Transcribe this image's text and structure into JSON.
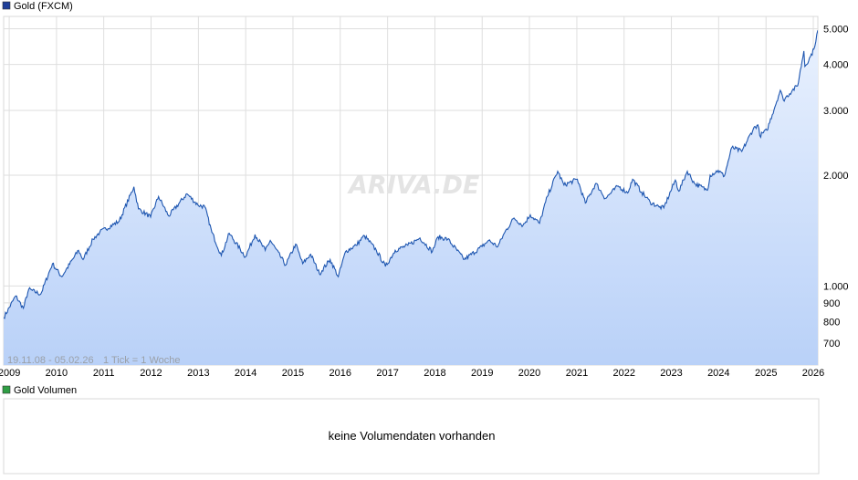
{
  "chart_data": [
    {
      "type": "area",
      "legend": "Gold (FXCM)",
      "legend_color": "#1f3f99",
      "line_color": "#1e56b0",
      "fill_top": "#e9f1fe",
      "fill_bottom": "#b9d1f8",
      "y_scale": "log",
      "ylim": [
        610,
        5400
      ],
      "y_ticks": [
        {
          "value": 700,
          "label": "700"
        },
        {
          "value": 800,
          "label": "800"
        },
        {
          "value": 900,
          "label": "900"
        },
        {
          "value": 1000,
          "label": "1.000"
        },
        {
          "value": 2000,
          "label": "2.000"
        },
        {
          "value": 3000,
          "label": "3.000"
        },
        {
          "value": 4000,
          "label": "4.000"
        },
        {
          "value": 5000,
          "label": "5.000"
        }
      ],
      "xlim": [
        "2008-11-19",
        "2026-02-05"
      ],
      "x_ticks": [
        "2009",
        "2010",
        "2011",
        "2012",
        "2013",
        "2014",
        "2015",
        "2016",
        "2017",
        "2018",
        "2019",
        "2020",
        "2021",
        "2022",
        "2023",
        "2024",
        "2025",
        "2026"
      ],
      "range_label": "19.11.08 - 05.02.26",
      "tick_label": "1 Tick = 1 Woche",
      "watermark": "ARIVA.DE",
      "grid": true,
      "x": [
        "2008-11-19",
        "2009-02-20",
        "2009-04-20",
        "2009-06-01",
        "2009-09-01",
        "2009-12-01",
        "2010-02-10",
        "2010-06-20",
        "2010-07-25",
        "2010-10-10",
        "2010-12-01",
        "2011-04-30",
        "2011-08-22",
        "2011-09-26",
        "2011-12-29",
        "2012-02-28",
        "2012-05-16",
        "2012-10-04",
        "2012-12-28",
        "2013-02-20",
        "2013-04-15",
        "2013-06-27",
        "2013-08-27",
        "2013-12-31",
        "2014-03-14",
        "2014-06-01",
        "2014-07-10",
        "2014-11-06",
        "2015-01-22",
        "2015-03-17",
        "2015-05-18",
        "2015-07-24",
        "2015-10-15",
        "2015-12-17",
        "2016-02-11",
        "2016-05-02",
        "2016-07-06",
        "2016-10-06",
        "2016-12-15",
        "2017-03-01",
        "2017-06-06",
        "2017-09-08",
        "2017-12-12",
        "2018-01-25",
        "2018-04-11",
        "2018-08-16",
        "2018-12-31",
        "2019-02-20",
        "2019-05-02",
        "2019-06-25",
        "2019-09-04",
        "2019-11-12",
        "2020-01-08",
        "2020-03-19",
        "2020-05-18",
        "2020-08-06",
        "2020-09-24",
        "2021-01-05",
        "2021-03-08",
        "2021-05-28",
        "2021-08-09",
        "2021-11-16",
        "2022-01-28",
        "2022-03-08",
        "2022-05-16",
        "2022-07-21",
        "2022-09-28",
        "2022-11-03",
        "2023-02-01",
        "2023-02-28",
        "2023-05-04",
        "2023-06-29",
        "2023-10-06",
        "2023-10-27",
        "2023-12-28",
        "2024-02-14",
        "2024-04-12",
        "2024-06-28",
        "2024-09-26",
        "2024-10-30",
        "2024-11-14",
        "2025-01-08",
        "2025-04-21",
        "2025-05-15",
        "2025-07-23",
        "2025-09-02",
        "2025-10-20",
        "2025-10-28",
        "2025-12-10",
        "2026-01-05",
        "2026-02-05"
      ],
      "values": [
        820,
        940,
        870,
        980,
        950,
        1150,
        1060,
        1250,
        1180,
        1340,
        1400,
        1500,
        1860,
        1620,
        1540,
        1750,
        1550,
        1780,
        1660,
        1640,
        1400,
        1210,
        1390,
        1200,
        1380,
        1250,
        1330,
        1140,
        1300,
        1150,
        1220,
        1080,
        1180,
        1060,
        1240,
        1290,
        1370,
        1250,
        1130,
        1250,
        1290,
        1350,
        1240,
        1360,
        1340,
        1180,
        1280,
        1330,
        1280,
        1400,
        1530,
        1460,
        1560,
        1480,
        1750,
        2050,
        1880,
        1950,
        1680,
        1900,
        1730,
        1870,
        1790,
        1950,
        1800,
        1690,
        1640,
        1630,
        1940,
        1810,
        2050,
        1900,
        1820,
        2000,
        2060,
        1990,
        2380,
        2320,
        2680,
        2740,
        2560,
        2650,
        3400,
        3200,
        3400,
        3500,
        4350,
        3950,
        4200,
        4400,
        4950
      ]
    },
    {
      "type": "bar",
      "legend": "Gold Volumen",
      "legend_color": "#2f9e44",
      "message": "keine Volumendaten vorhanden"
    }
  ]
}
